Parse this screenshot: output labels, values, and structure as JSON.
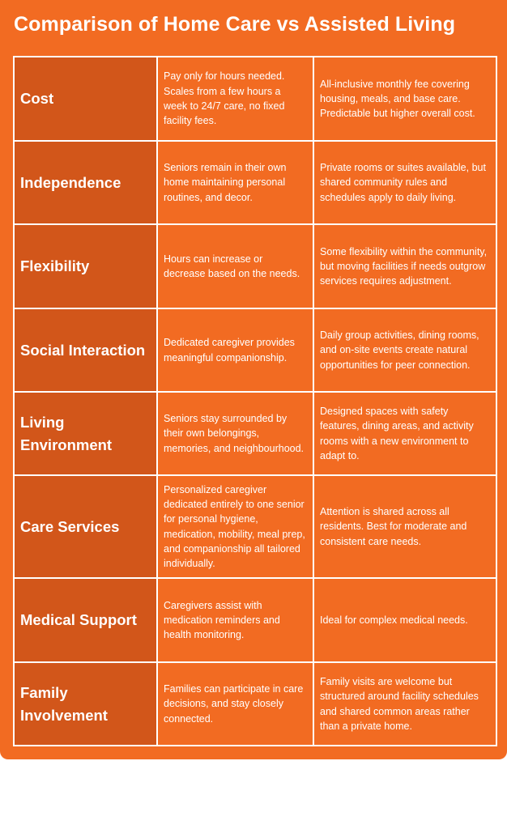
{
  "header": {
    "title": "Comparison of Home Care vs Assisted Living"
  },
  "table": {
    "rows": [
      [
        "Cost",
        "Pay only for hours needed. Scales from a few hours a week to 24/7 care, no fixed facility fees.",
        "All-inclusive monthly fee covering housing, meals, and base care. Predictable but higher overall cost."
      ],
      [
        "Independence",
        "Seniors remain in their own home maintaining personal routines, and decor.",
        "Private rooms or suites available, but shared community rules and schedules apply to daily living."
      ],
      [
        "Flexibility",
        "Hours can increase or decrease based on the needs.",
        "Some flexibility within the community, but moving facilities if needs outgrow services requires adjustment."
      ],
      [
        "Social Interaction",
        "Dedicated caregiver provides meaningful companionship.",
        "Daily group activities, dining rooms, and on-site events create natural opportunities for peer connection."
      ],
      [
        "Living Environment",
        "Seniors stay surrounded by their own belongings, memories, and neighbourhood.",
        "Designed spaces with safety features, dining areas, and activity rooms with a new environment to adapt to."
      ],
      [
        "Care Services",
        "Personalized caregiver dedicated entirely to one senior for personal hygiene, medication, mobility, meal prep, and companionship all tailored individually.",
        "Attention is shared across all residents. Best for moderate and consistent care needs."
      ],
      [
        "Medical Support",
        "Caregivers assist with medication reminders and health monitoring.",
        "Ideal for complex medical needs."
      ],
      [
        "Family Involvement",
        "Families can participate in care decisions, and stay closely connected.",
        "Family visits are welcome but structured around facility schedules and shared common areas rather than a private home."
      ]
    ]
  }
}
